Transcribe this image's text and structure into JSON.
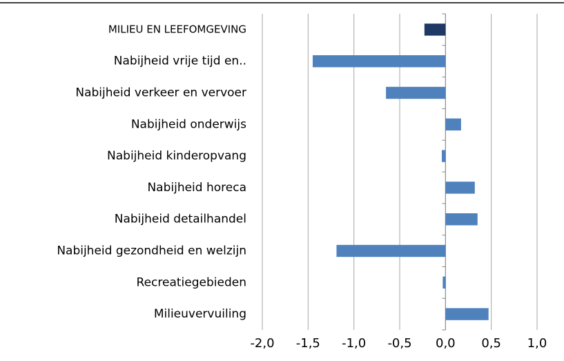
{
  "chart_data": {
    "type": "barh",
    "categories": [
      "MILIEU EN LEEFOMGEVING",
      "Nabijheid vrije tijd en..",
      "Nabijheid verkeer en vervoer",
      "Nabijheid onderwijs",
      "Nabijheid kinderopvang",
      "Nabijheid horeca",
      "Nabijheid detailhandel",
      "Nabijheid gezondheid en welzijn",
      "Recreatiegebieden",
      "Milieuvervuiling"
    ],
    "values": [
      -0.23,
      -1.45,
      -0.65,
      0.17,
      -0.04,
      0.32,
      0.35,
      -1.19,
      -0.03,
      0.47
    ],
    "colors": [
      "#1f3864",
      "#4f81bd",
      "#4f81bd",
      "#4f81bd",
      "#4f81bd",
      "#4f81bd",
      "#4f81bd",
      "#4f81bd",
      "#4f81bd",
      "#4f81bd"
    ],
    "xlim": [
      -2,
      1
    ],
    "xticks": [
      {
        "value": -2,
        "label": "-2,0"
      },
      {
        "value": -1.5,
        "label": "-1,5"
      },
      {
        "value": -1,
        "label": "-1,0"
      },
      {
        "value": -0.5,
        "label": "-0,5"
      },
      {
        "value": 0,
        "label": "0,0"
      },
      {
        "value": 0.5,
        "label": "0,5"
      },
      {
        "value": 1,
        "label": "1,0"
      }
    ],
    "grid": true
  }
}
